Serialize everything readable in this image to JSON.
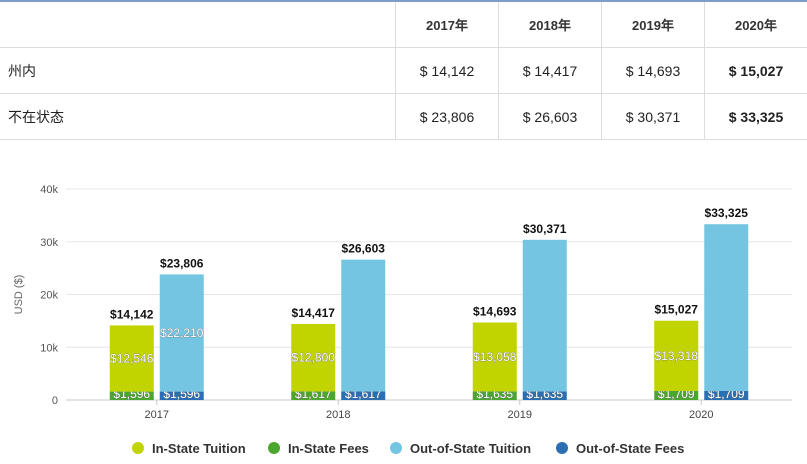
{
  "table": {
    "headers": [
      "",
      "2017年",
      "2018年",
      "2019年",
      "2020年"
    ],
    "rows": [
      {
        "label": "州内",
        "values": [
          "$ 14,142",
          "$ 14,417",
          "$ 14,693",
          "$ 15,027"
        ]
      },
      {
        "label": "不在状态",
        "values": [
          "$ 23,806",
          "$ 26,603",
          "$ 30,371",
          "$ 33,325"
        ]
      }
    ]
  },
  "chart_data": {
    "type": "bar",
    "stacked": true,
    "categories": [
      "2017",
      "2018",
      "2019",
      "2020"
    ],
    "ylabel": "USD ($)",
    "ylim": [
      0,
      40000
    ],
    "yticks": [
      0,
      10000,
      20000,
      30000,
      40000
    ],
    "ytick_labels": [
      "0",
      "10k",
      "20k",
      "30k",
      "40k"
    ],
    "grid": true,
    "stacks": [
      {
        "name": "In-State",
        "totals": [
          14142,
          14417,
          14693,
          15027
        ],
        "total_labels": [
          "$14,142",
          "$14,417",
          "$14,693",
          "$15,027"
        ],
        "segments": [
          {
            "name": "In-State Fees",
            "values": [
              1596,
              1617,
              1635,
              1709
            ],
            "labels": [
              "$1,596",
              "$1,617",
              "$1,635",
              "$1,709"
            ],
            "color": "#4aa62c"
          },
          {
            "name": "In-State Tuition",
            "values": [
              12546,
              12800,
              13058,
              13318
            ],
            "labels": [
              "$12,546",
              "$12,800",
              "$13,058",
              "$13,318"
            ],
            "color": "#c2d400"
          }
        ]
      },
      {
        "name": "Out-of-State",
        "totals": [
          23806,
          26603,
          30371,
          33325
        ],
        "total_labels": [
          "$23,806",
          "$26,603",
          "$30,371",
          "$33,325"
        ],
        "segments": [
          {
            "name": "Out-of-State Fees",
            "values": [
              1596,
              1617,
              1635,
              1709
            ],
            "labels": [
              "$1,596",
              "$1,617",
              "$1,635",
              "$1,709"
            ],
            "color": "#2b6fb3"
          },
          {
            "name": "Out-of-State Tuition",
            "values": [
              22210,
              24986,
              28736,
              31616
            ],
            "labels": [
              "$22,210",
              "",
              "",
              ""
            ],
            "color": "#73c5e2"
          }
        ]
      }
    ],
    "legend": [
      {
        "name": "In-State Tuition",
        "color": "#c2d400"
      },
      {
        "name": "In-State Fees",
        "color": "#4aa62c"
      },
      {
        "name": "Out-of-State Tuition",
        "color": "#73c5e2"
      },
      {
        "name": "Out-of-State Fees",
        "color": "#2b6fb3"
      }
    ],
    "legend_position": "bottom"
  }
}
